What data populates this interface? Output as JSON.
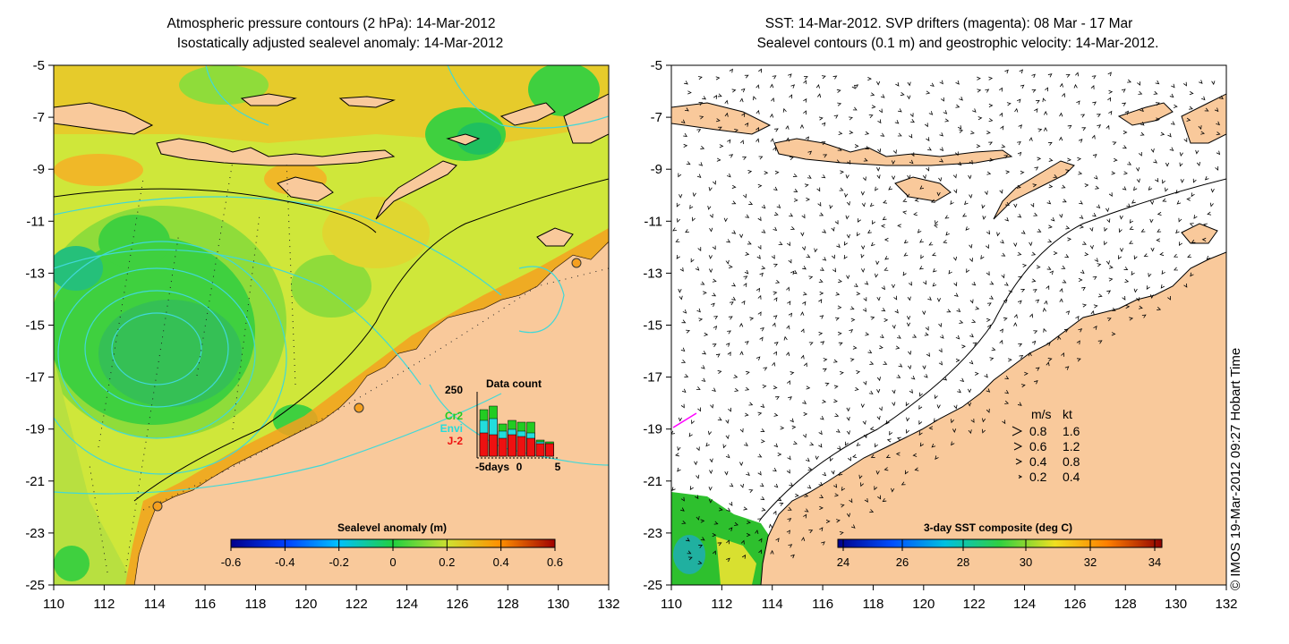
{
  "left_panel": {
    "title_line1": "Atmospheric pressure contours (2 hPa): 14-Mar-2012",
    "title_line2": "Isostatically adjusted sealevel anomaly: 14-Mar-2012",
    "y_ticks": [
      "-5",
      "-7",
      "-9",
      "-11",
      "-13",
      "-15",
      "-17",
      "-19",
      "-21",
      "-23",
      "-25"
    ],
    "x_ticks": [
      "110",
      "112",
      "114",
      "116",
      "118",
      "120",
      "122",
      "124",
      "126",
      "128",
      "130",
      "132"
    ],
    "colorbar_title": "Sealevel anomaly (m)",
    "colorbar_ticks": [
      "-0.6",
      "-0.4",
      "-0.2",
      "0",
      "0.2",
      "0.4",
      "0.6"
    ],
    "inset": {
      "title": "Data count",
      "y_max_label": "250",
      "x_labels": [
        "-5days",
        "0",
        "5"
      ],
      "legend": [
        {
          "label": "Cr2",
          "color": "#22cc22"
        },
        {
          "label": "Envi",
          "color": "#22dddd"
        },
        {
          "label": "J-2",
          "color": "#ee1111"
        }
      ]
    }
  },
  "right_panel": {
    "title_line1": "SST: 14-Mar-2012. SVP drifters (magenta): 08 Mar - 17 Mar",
    "title_line2": "Sealevel contours (0.1 m) and geostrophic velocity: 14-Mar-2012.",
    "y_ticks": [
      "-5",
      "-7",
      "-9",
      "-11",
      "-13",
      "-15",
      "-17",
      "-19",
      "-21",
      "-23",
      "-25"
    ],
    "x_ticks": [
      "110",
      "112",
      "114",
      "116",
      "118",
      "120",
      "122",
      "124",
      "126",
      "128",
      "130",
      "132"
    ],
    "colorbar_title": "3-day SST composite (deg C)",
    "colorbar_ticks": [
      "24",
      "26",
      "28",
      "30",
      "32",
      "34"
    ],
    "velocity_key": {
      "header_ms": "m/s",
      "header_kt": "kt",
      "rows": [
        {
          "ms": "0.8",
          "kt": "1.6"
        },
        {
          "ms": "0.6",
          "kt": "1.2"
        },
        {
          "ms": "0.4",
          "kt": "0.8"
        },
        {
          "ms": "0.2",
          "kt": "0.4"
        }
      ]
    }
  },
  "credit": "© IMOS 19-Mar-2012 09:27 Hobart Time",
  "colors": {
    "land": "#f9c99b",
    "sla_base": "#cfe73a",
    "sla_green": "#3fd03f",
    "sla_orange": "#f8b020",
    "contour": "#40d8d8"
  }
}
